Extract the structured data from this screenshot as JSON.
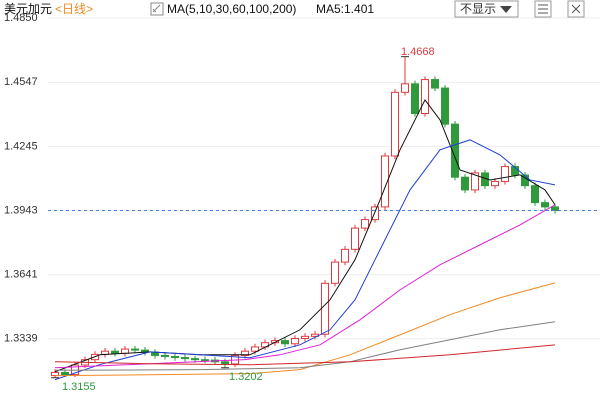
{
  "header": {
    "symbol": "美元加元",
    "period": "<日线>",
    "ma_settings": "MA(5,10,30,60,100,200)",
    "ma5_text": "MA5:1.401",
    "toggle_button": "不显示"
  },
  "chart_data": {
    "type": "candlestick",
    "open": [
      1.3165,
      1.318,
      1.317,
      1.3215,
      1.324,
      1.3265,
      1.328,
      1.327,
      1.329,
      1.3285,
      1.3275,
      1.326,
      1.3255,
      1.325,
      1.3245,
      1.324,
      1.3238,
      1.323,
      1.322,
      1.326,
      1.328,
      1.33,
      1.332,
      1.333,
      1.3315,
      1.334,
      1.335,
      1.336,
      1.36,
      1.37,
      1.376,
      1.386,
      1.39,
      1.396,
      1.42,
      1.45,
      1.454,
      1.44,
      1.456,
      1.452,
      1.435,
      1.41,
      1.404,
      1.412,
      1.406,
      1.408,
      1.415,
      1.411,
      1.406,
      1.398,
      1.396
    ],
    "high": [
      1.3195,
      1.3195,
      1.323,
      1.3255,
      1.328,
      1.3295,
      1.3295,
      1.3305,
      1.3305,
      1.33,
      1.329,
      1.3275,
      1.327,
      1.3265,
      1.326,
      1.3255,
      1.3253,
      1.3245,
      1.3275,
      1.3295,
      1.3315,
      1.3335,
      1.3345,
      1.3345,
      1.3355,
      1.3365,
      1.3375,
      1.3615,
      1.3715,
      1.3775,
      1.3875,
      1.3915,
      1.3975,
      1.4215,
      1.4515,
      1.4668,
      1.4555,
      1.4575,
      1.4575,
      1.4535,
      1.4365,
      1.4115,
      1.4135,
      1.4135,
      1.4095,
      1.4165,
      1.4165,
      1.4125,
      1.4075,
      1.3995,
      1.3975
    ],
    "low": [
      1.3155,
      1.316,
      1.3158,
      1.32,
      1.3225,
      1.325,
      1.3255,
      1.3255,
      1.327,
      1.326,
      1.3245,
      1.324,
      1.3235,
      1.323,
      1.3225,
      1.3223,
      1.3215,
      1.3202,
      1.3205,
      1.3245,
      1.3265,
      1.3285,
      1.3305,
      1.33,
      1.33,
      1.3325,
      1.3335,
      1.3345,
      1.3585,
      1.3685,
      1.3745,
      1.3845,
      1.3885,
      1.3945,
      1.4185,
      1.4485,
      1.4385,
      1.4385,
      1.4505,
      1.4335,
      1.4085,
      1.4025,
      1.4025,
      1.4045,
      1.4045,
      1.4065,
      1.4095,
      1.4045,
      1.3965,
      1.3945,
      1.3928
    ],
    "close": [
      1.318,
      1.317,
      1.3215,
      1.324,
      1.3265,
      1.328,
      1.327,
      1.329,
      1.3285,
      1.3275,
      1.326,
      1.3255,
      1.325,
      1.3245,
      1.324,
      1.3238,
      1.323,
      1.322,
      1.326,
      1.328,
      1.33,
      1.332,
      1.333,
      1.3315,
      1.334,
      1.335,
      1.336,
      1.36,
      1.37,
      1.376,
      1.386,
      1.39,
      1.396,
      1.42,
      1.45,
      1.454,
      1.44,
      1.456,
      1.452,
      1.435,
      1.41,
      1.404,
      1.412,
      1.406,
      1.408,
      1.415,
      1.411,
      1.406,
      1.398,
      1.396,
      1.3943
    ],
    "up_color": "#e0393e",
    "down_color": "#2f9a3c",
    "ma_lines": [
      {
        "color": "#111111",
        "x": [
          0,
          4.5,
          9.5,
          14.5,
          19.5,
          24.5,
          27.5,
          30,
          32.5,
          34.5,
          37,
          38.5,
          40.5,
          43.5,
          46.5,
          49,
          50
        ],
        "values": [
          1.3183,
          1.3263,
          1.3277,
          1.3263,
          1.3263,
          1.3381,
          1.3522,
          1.3711,
          1.3993,
          1.4229,
          1.4464,
          1.437,
          1.4134,
          1.4087,
          1.4111,
          1.404,
          1.397
        ]
      },
      {
        "color": "#1f3fd6",
        "x": [
          0,
          4.5,
          9.5,
          14.5,
          19.5,
          24.5,
          27.5,
          30,
          32.5,
          35.5,
          38.5,
          41.5,
          44.5,
          47.5,
          50
        ],
        "values": [
          1.3146,
          1.3217,
          1.3277,
          1.3263,
          1.3249,
          1.331,
          1.3381,
          1.3522,
          1.3758,
          1.404,
          1.4229,
          1.4276,
          1.4205,
          1.4087,
          1.4064
        ]
      },
      {
        "color": "#e020d8",
        "x": [
          0,
          19,
          22.5,
          26.5,
          30.5,
          34.5,
          38.5,
          42.5,
          46.5,
          50
        ],
        "values": [
          1.3202,
          1.324,
          1.3263,
          1.331,
          1.3428,
          1.3569,
          1.3687,
          1.3781,
          1.3875,
          1.397
        ]
      },
      {
        "color": "#f08a24",
        "x": [
          0,
          9.5,
          19.5,
          24.5,
          29.5,
          34.5,
          39.5,
          44.5,
          50
        ],
        "values": [
          1.3165,
          1.3169,
          1.3174,
          1.3193,
          1.3263,
          1.3357,
          1.3452,
          1.3532,
          1.3602
        ]
      },
      {
        "color": "#808080",
        "x": [
          0,
          14.5,
          24.5,
          29.5,
          34.5,
          39.5,
          44.5,
          50
        ],
        "values": [
          1.319,
          1.3193,
          1.3202,
          1.323,
          1.3287,
          1.3334,
          1.3381,
          1.3419
        ]
      },
      {
        "color": "#d0282a",
        "x": [
          0,
          9.5,
          19.5,
          29.5,
          39.5,
          50
        ],
        "values": [
          1.323,
          1.3221,
          1.3216,
          1.323,
          1.3263,
          1.331
        ]
      }
    ],
    "price_line": 1.3943,
    "ylim": [
      1.305,
      1.4935
    ],
    "yticks": [
      {
        "value": 1.485,
        "label": "1.4850"
      },
      1.4547,
      1.4245,
      1.3943,
      1.3641,
      1.3339
    ],
    "grid": true
  }
}
